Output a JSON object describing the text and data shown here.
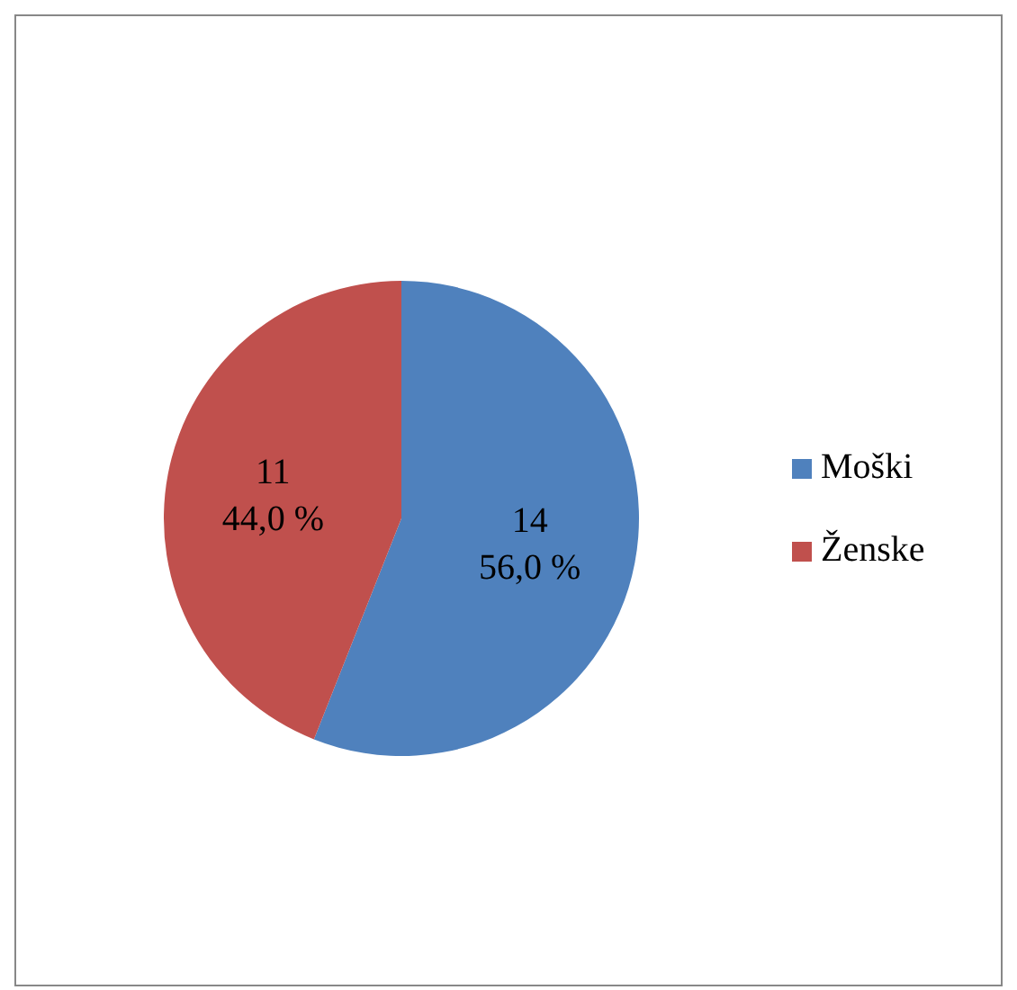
{
  "chart_data": {
    "type": "pie",
    "categories": [
      "Moški",
      "Ženske"
    ],
    "values": [
      14,
      11
    ],
    "colors": [
      "#4f81bd",
      "#c0504d"
    ],
    "value_labels": [
      "14\n56,0 %",
      "11\n44,0 %"
    ],
    "legend": "right"
  }
}
